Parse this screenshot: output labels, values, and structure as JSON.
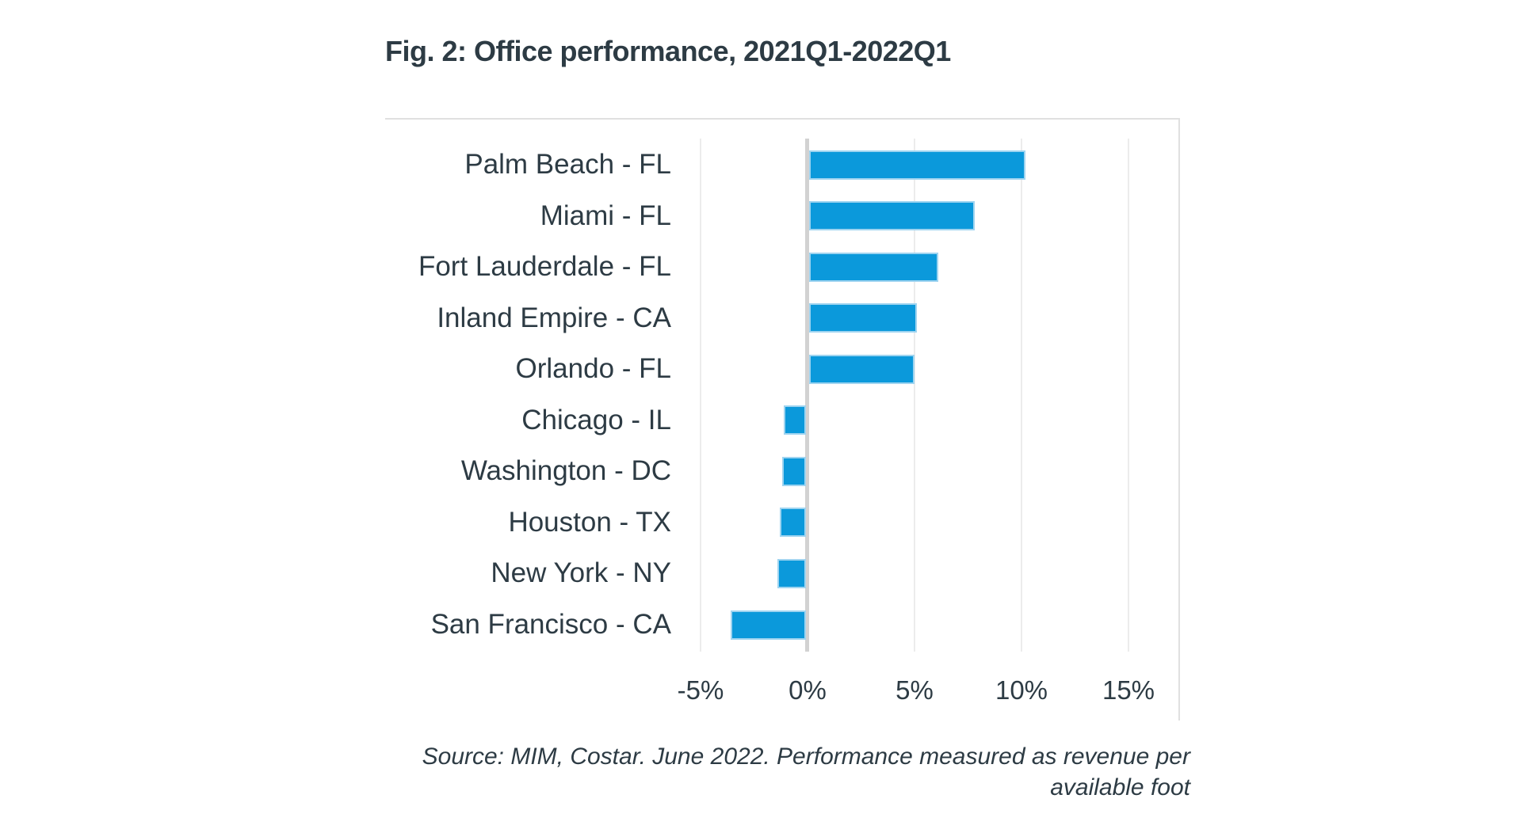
{
  "figure": {
    "title": "Fig. 2: Office performance, 2021Q1-2022Q1",
    "source_line1": "Source: MIM, Costar. June 2022. Performance measured as revenue per",
    "source_line2": "available foot"
  },
  "chart_data": {
    "type": "bar",
    "orientation": "horizontal",
    "title": "Fig. 2: Office performance, 2021Q1-2022Q1",
    "categories": [
      "Palm Beach - FL",
      "Miami - FL",
      "Fort Lauderdale - FL",
      "Inland Empire - CA",
      "Orlando - FL",
      "Chicago - IL",
      "Washington - DC",
      "Houston - TX",
      "New York - NY",
      "San Francisco - CA"
    ],
    "values": [
      10.2,
      7.8,
      6.1,
      5.1,
      5.0,
      -1.1,
      -1.2,
      -1.3,
      -1.4,
      -3.6
    ],
    "unit": "%",
    "xlabel": "",
    "ylabel": "",
    "x_ticks": [
      "-5%",
      "0%",
      "5%",
      "10%",
      "15%"
    ],
    "x_tick_values": [
      -5,
      0,
      5,
      10,
      15
    ],
    "xlim": [
      -19.8,
      17.4
    ],
    "grid": "vertical-gridlines-at-ticks",
    "legend": "none",
    "bar_color": "#0b99db",
    "bar_border_color": "#9fd4f0",
    "zero_line_color": "#d2d2d2",
    "grid_color": "#ececec",
    "frame_color": "#e0e0e0",
    "text_color": "#2d3b44"
  }
}
